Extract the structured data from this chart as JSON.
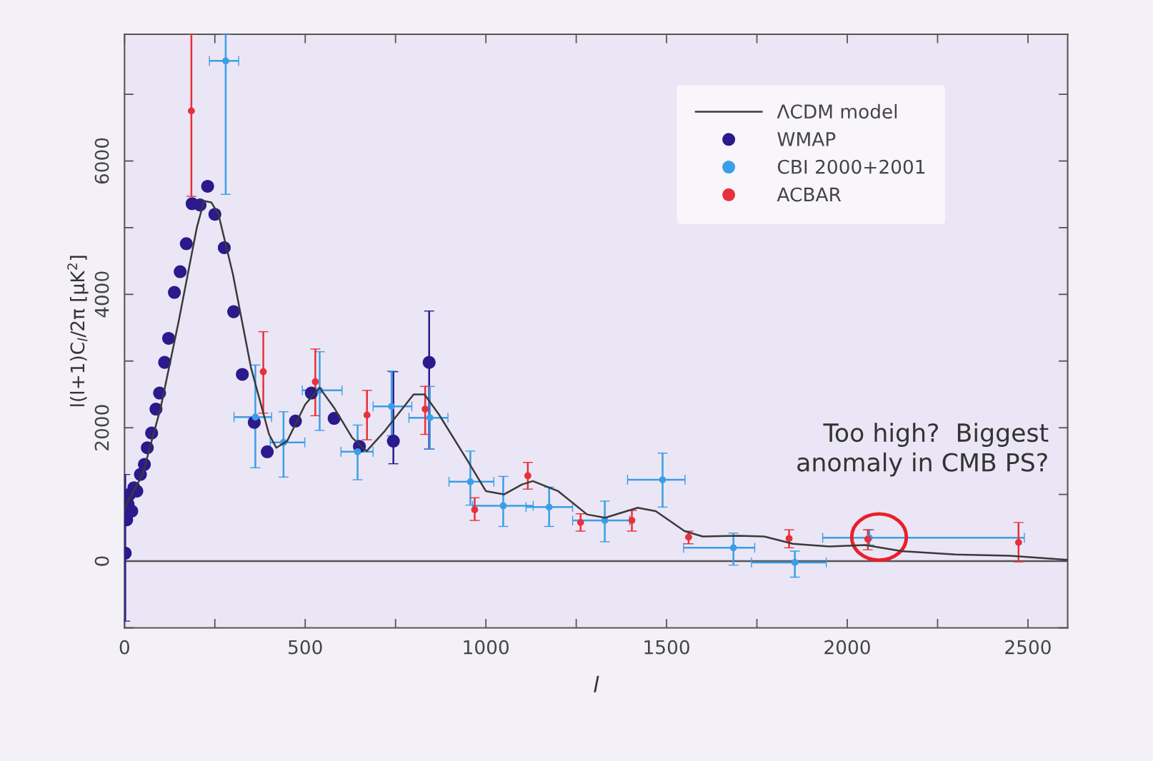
{
  "chart_data": {
    "type": "scatter",
    "xlabel": "l",
    "ylabel": "l(l+1)C$_{l}$/2π [μK$^{2}$]",
    "xlim": [
      0,
      2610
    ],
    "ylim": [
      -1000,
      7900
    ],
    "xticks": [
      0,
      {
        "value": 250,
        "label": null
      },
      500,
      {
        "value": 750,
        "label": null
      },
      1000,
      {
        "value": 1250,
        "label": null
      },
      1500,
      {
        "value": 1750,
        "label": null
      },
      2000,
      {
        "value": 2250,
        "label": null
      },
      2500
    ],
    "yticks": [
      {
        "value": -1000,
        "label": null
      },
      0,
      {
        "value": 1000,
        "label": null
      },
      2000,
      {
        "value": 3000,
        "label": null
      },
      4000,
      {
        "value": 5000,
        "label": null
      },
      6000,
      {
        "value": 7000,
        "label": null
      }
    ],
    "grid": false,
    "legend": "top right",
    "ref_lines": [
      {
        "axis": "y",
        "value": 0,
        "color": "#555555"
      }
    ],
    "annotations": [
      "Too high?  Biggest\nanomaly in CMB PS?"
    ],
    "series": [
      {
        "name": "ΛCDM model",
        "type": "line",
        "color": "#3a3a3a",
        "marker": "none",
        "line_style": "solid",
        "x": [
          2,
          10,
          50,
          100,
          150,
          200,
          220,
          240,
          260,
          300,
          350,
          400,
          420,
          450,
          500,
          540,
          580,
          630,
          670,
          720,
          800,
          830,
          870,
          950,
          1000,
          1050,
          1100,
          1130,
          1200,
          1280,
          1330,
          1420,
          1470,
          1550,
          1600,
          1700,
          1770,
          1850,
          1950,
          2050,
          2150,
          2300,
          2450,
          2610
        ],
        "values": [
          800,
          900,
          1300,
          2300,
          3600,
          5000,
          5400,
          5380,
          5200,
          4300,
          2900,
          1900,
          1700,
          1800,
          2350,
          2600,
          2300,
          1850,
          1650,
          1950,
          2500,
          2500,
          2200,
          1500,
          1050,
          1000,
          1150,
          1200,
          1050,
          700,
          650,
          800,
          750,
          450,
          370,
          380,
          370,
          260,
          220,
          240,
          150,
          100,
          80,
          20
        ]
      },
      {
        "name": "WMAP",
        "color": "#2a1a8c",
        "marker": "circle",
        "x": [
          2,
          6,
          10,
          14,
          20,
          26,
          34,
          44,
          55,
          63,
          75,
          87,
          97,
          111,
          122,
          138,
          154,
          171,
          187,
          209,
          230,
          250,
          276,
          302,
          326,
          359,
          395,
          473,
          517,
          580,
          650,
          744,
          843
        ],
        "values": [
          120,
          620,
          850,
          1000,
          750,
          1100,
          1050,
          1300,
          1450,
          1700,
          1920,
          2280,
          2520,
          2980,
          3340,
          4030,
          4340,
          4760,
          5360,
          5340,
          5620,
          5200,
          4700,
          3740,
          2800,
          2080,
          1640,
          2100,
          2520,
          2140,
          1720,
          1800,
          2980
        ],
        "errors": [
          [
            -900,
            1300
          ],
          null,
          null,
          null,
          null,
          null,
          null,
          null,
          null,
          null,
          null,
          null,
          null,
          null,
          null,
          null,
          null,
          null,
          null,
          null,
          null,
          null,
          null,
          null,
          null,
          null,
          null,
          null,
          null,
          null,
          null,
          [
            1460,
            2840
          ],
          [
            1680,
            3750
          ]
        ]
      },
      {
        "name": "CBI 2000+2001",
        "color": "#3a9ee8",
        "marker": "circle",
        "x": [
          280,
          362,
          440,
          540,
          645,
          739,
          845,
          957,
          1048,
          1175,
          1329,
          1489,
          1685,
          1855,
          2061
        ],
        "values": [
          7500,
          2160,
          1780,
          2560,
          1640,
          2320,
          2150,
          1190,
          830,
          810,
          610,
          1220,
          200,
          -20,
          350
        ],
        "errors": [
          [
            5500,
            7900
          ],
          [
            1400,
            2940
          ],
          [
            1260,
            2240
          ],
          [
            1960,
            3140
          ],
          [
            1220,
            2040
          ],
          [
            1880,
            2850
          ],
          [
            1680,
            2620
          ],
          [
            840,
            1650
          ],
          [
            520,
            1270
          ],
          [
            520,
            1110
          ],
          [
            290,
            900
          ],
          [
            810,
            1620
          ],
          [
            -60,
            420
          ],
          [
            -240,
            150
          ],
          [
            240,
            470
          ]
        ],
        "xerrors": [
          [
            235,
            316
          ],
          [
            303,
            407
          ],
          [
            403,
            499
          ],
          [
            492,
            602
          ],
          [
            599,
            688
          ],
          [
            688,
            795
          ],
          [
            787,
            895
          ],
          [
            898,
            1022
          ],
          [
            963,
            1131
          ],
          [
            1111,
            1240
          ],
          [
            1240,
            1398
          ],
          [
            1392,
            1551
          ],
          [
            1547,
            1744
          ],
          [
            1735,
            1942
          ],
          [
            1932,
            2490
          ]
        ]
      },
      {
        "name": "ACBAR",
        "color": "#e8303a",
        "marker": "circle",
        "x": [
          185,
          384,
          528,
          671,
          832,
          969,
          1116,
          1262,
          1404,
          1561,
          1839,
          2057,
          2474
        ],
        "values": [
          6750,
          2840,
          2690,
          2190,
          2280,
          770,
          1280,
          580,
          610,
          360,
          340,
          330,
          280
        ],
        "errors": [
          [
            5470,
            7900
          ],
          [
            2220,
            3440
          ],
          [
            2180,
            3180
          ],
          [
            1820,
            2560
          ],
          [
            1900,
            2620
          ],
          [
            610,
            950
          ],
          [
            1080,
            1480
          ],
          [
            450,
            710
          ],
          [
            450,
            760
          ],
          [
            260,
            450
          ],
          [
            200,
            470
          ],
          [
            170,
            470
          ],
          [
            -10,
            580
          ]
        ]
      }
    ]
  }
}
